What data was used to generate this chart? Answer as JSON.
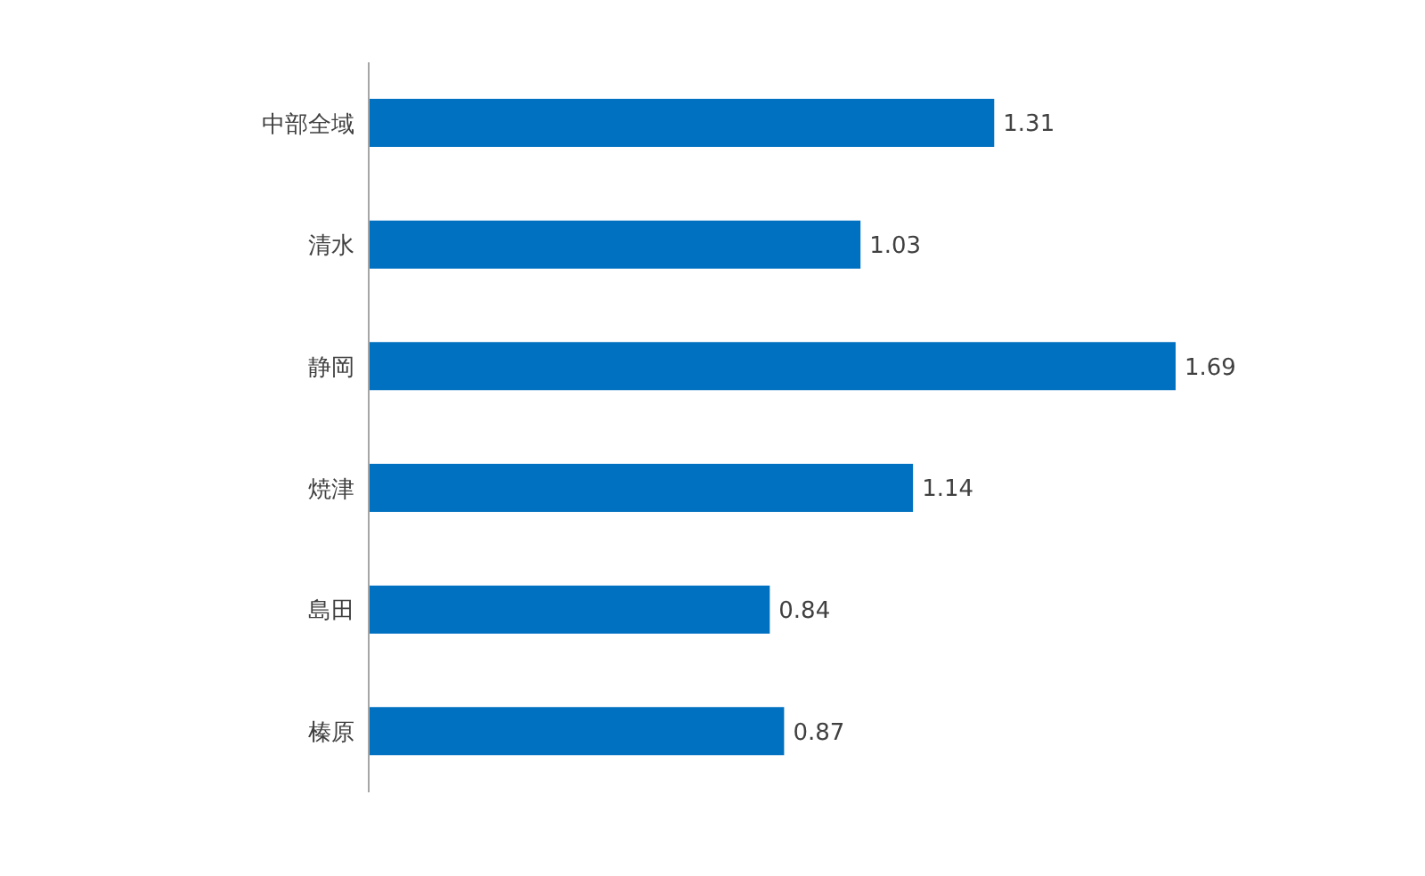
{
  "chart_data": {
    "type": "bar",
    "orientation": "horizontal",
    "categories": [
      "中部全域",
      "清水",
      "静岡",
      "焼津",
      "島田",
      "榛原"
    ],
    "values": [
      1.31,
      1.03,
      1.69,
      1.14,
      0.84,
      0.87
    ],
    "color": "#0070c0",
    "data_labels": true
  }
}
